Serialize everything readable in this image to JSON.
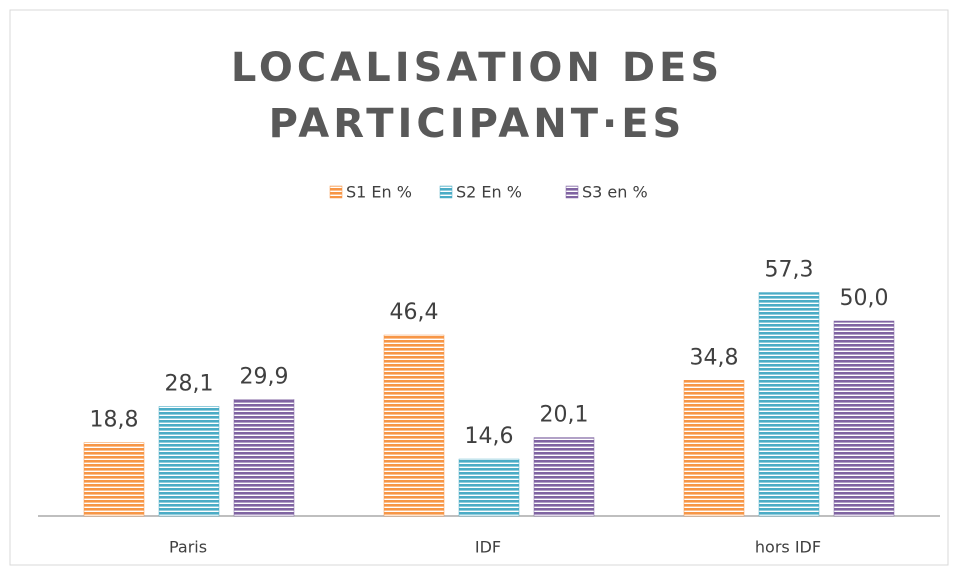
{
  "chart_data": {
    "type": "bar",
    "title": "LOCALISATION DES PARTICIPANT·ES",
    "categories": [
      "Paris",
      "IDF",
      "hors IDF"
    ],
    "series": [
      {
        "name": "S1 En %",
        "color": "#f79646",
        "values": [
          18.8,
          46.4,
          34.8
        ],
        "value_labels": [
          "18,8",
          "46,4",
          "34,8"
        ]
      },
      {
        "name": "S2 En %",
        "color": "#4bacc6",
        "values": [
          28.1,
          14.6,
          57.3
        ],
        "value_labels": [
          "28,1",
          "14,6",
          "57,3"
        ]
      },
      {
        "name": "S3 en %",
        "color": "#8064a2",
        "values": [
          29.9,
          20.1,
          50
        ],
        "value_labels": [
          "29,9",
          "20,1",
          "50,0"
        ]
      }
    ],
    "legend": "top"
  }
}
